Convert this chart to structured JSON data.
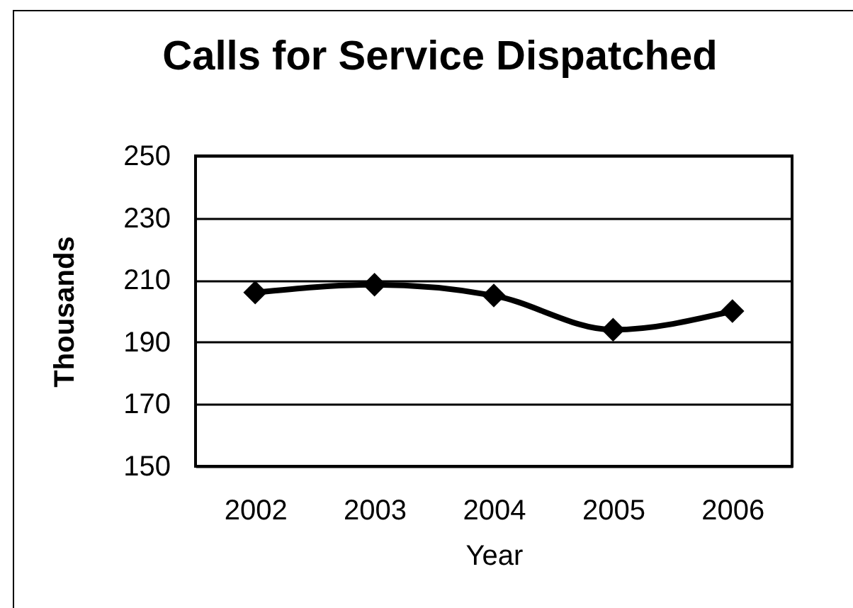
{
  "chart_data": {
    "type": "line",
    "title": "Calls for Service Dispatched",
    "xlabel": "Year",
    "ylabel": "Thousands",
    "categories": [
      "2002",
      "2003",
      "2004",
      "2005",
      "2006"
    ],
    "series": [
      {
        "color": "#000000",
        "values": [
          206,
          208.5,
          205,
          194,
          200
        ]
      }
    ],
    "ylim": [
      150,
      250
    ],
    "yticks": [
      150,
      170,
      190,
      210,
      230,
      250
    ],
    "grid": "y",
    "marker": "diamond",
    "line_style": "solid"
  }
}
